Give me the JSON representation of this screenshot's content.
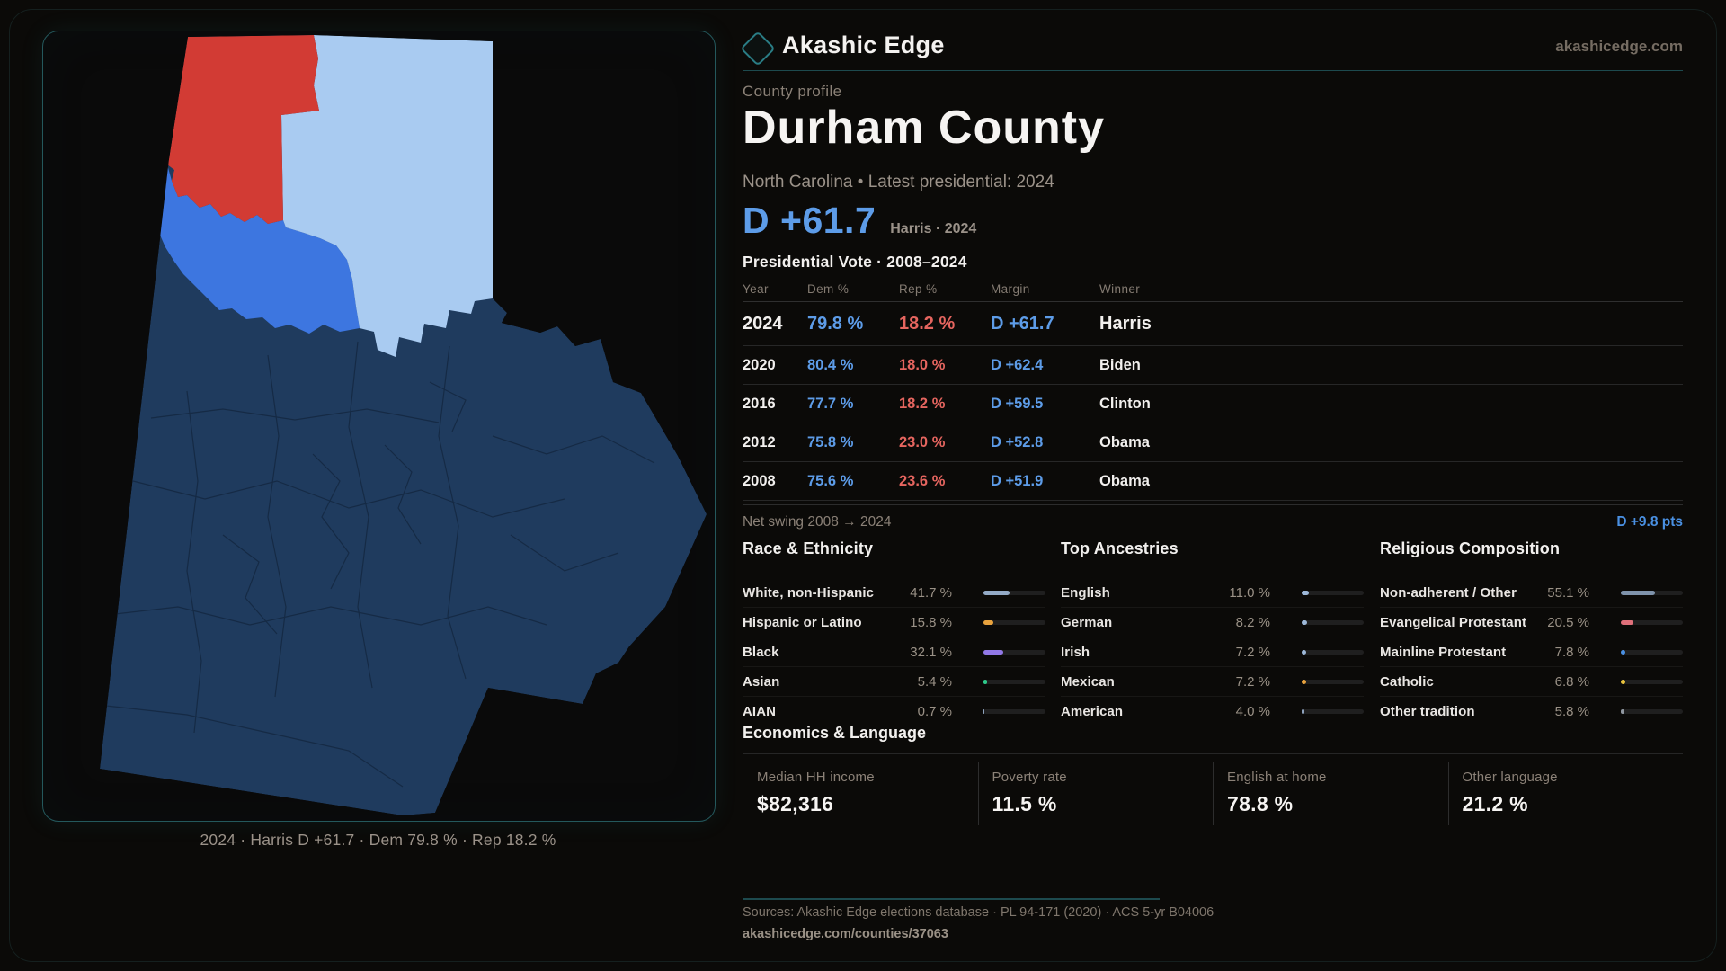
{
  "brand": {
    "name": "Akashic Edge",
    "domain": "akashicedge.com"
  },
  "page": {
    "kicker": "County profile",
    "title": "Durham County",
    "subtitle": "North Carolina • Latest presidential: 2024"
  },
  "headline": {
    "margin": "D +61.7",
    "context": "Harris · 2024"
  },
  "map": {
    "caption": "2024 · Harris D +61.7 · Dem 79.8 % · Rep 18.2 %",
    "colors": {
      "strong_dem": "#1f3b5e",
      "lean_dem_medium": "#3d76e0",
      "lean_dem_light": "#a9cbf1",
      "rep": "#d23b34",
      "precinct_line": "#142841",
      "panel_border": "#24585c"
    }
  },
  "vote_table": {
    "title": "Presidential Vote · 2008–2024",
    "columns": [
      "Year",
      "Dem %",
      "Rep %",
      "Margin",
      "Winner"
    ],
    "rows": [
      {
        "year": "2024",
        "dem": "79.8 %",
        "rep": "18.2 %",
        "margin": "D +61.7",
        "winner": "Harris",
        "highlight": true
      },
      {
        "year": "2020",
        "dem": "80.4 %",
        "rep": "18.0 %",
        "margin": "D +62.4",
        "winner": "Biden",
        "highlight": false
      },
      {
        "year": "2016",
        "dem": "77.7 %",
        "rep": "18.2 %",
        "margin": "D +59.5",
        "winner": "Clinton",
        "highlight": false
      },
      {
        "year": "2012",
        "dem": "75.8 %",
        "rep": "23.0 %",
        "margin": "D +52.8",
        "winner": "Obama",
        "highlight": false
      },
      {
        "year": "2008",
        "dem": "75.6 %",
        "rep": "23.6 %",
        "margin": "D +51.9",
        "winner": "Obama",
        "highlight": false
      }
    ]
  },
  "net_swing": {
    "label": "Net swing 2008 → 2024",
    "value": "D +9.8 pts"
  },
  "demographics": [
    {
      "title": "Race & Ethnicity",
      "rows": [
        {
          "label": "White, non-Hispanic",
          "value": "41.7 %",
          "pct": 41.7,
          "color": "#93aac6"
        },
        {
          "label": "Hispanic or Latino",
          "value": "15.8 %",
          "pct": 15.8,
          "color": "#e8a23d"
        },
        {
          "label": "Black",
          "value": "32.1 %",
          "pct": 32.1,
          "color": "#9178e6"
        },
        {
          "label": "Asian",
          "value": "5.4 %",
          "pct": 5.4,
          "color": "#2ec98a"
        },
        {
          "label": "AIAN",
          "value": "0.7 %",
          "pct": 0.7,
          "color": "#8fa3bd"
        }
      ]
    },
    {
      "title": "Top Ancestries",
      "rows": [
        {
          "label": "English",
          "value": "11.0 %",
          "pct": 11.0,
          "color": "#9db8d8"
        },
        {
          "label": "German",
          "value": "8.2 %",
          "pct": 8.2,
          "color": "#9db8d8"
        },
        {
          "label": "Irish",
          "value": "7.2 %",
          "pct": 7.2,
          "color": "#9db8d8"
        },
        {
          "label": "Mexican",
          "value": "7.2 %",
          "pct": 7.2,
          "color": "#e8a23d"
        },
        {
          "label": "American",
          "value": "4.0 %",
          "pct": 4.0,
          "color": "#8fa3bd"
        }
      ]
    },
    {
      "title": "Religious Composition",
      "rows": [
        {
          "label": "Non-adherent / Other",
          "value": "55.1 %",
          "pct": 55.1,
          "color": "#7f93ab"
        },
        {
          "label": "Evangelical Protestant",
          "value": "20.5 %",
          "pct": 20.5,
          "color": "#e0707a"
        },
        {
          "label": "Mainline Protestant",
          "value": "7.8 %",
          "pct": 7.8,
          "color": "#4a90e2"
        },
        {
          "label": "Catholic",
          "value": "6.8 %",
          "pct": 6.8,
          "color": "#e8c23d"
        },
        {
          "label": "Other tradition",
          "value": "5.8 %",
          "pct": 5.8,
          "color": "#9097a0"
        }
      ]
    }
  ],
  "economics": {
    "title": "Economics & Language",
    "stats": [
      {
        "label": "Median HH income",
        "value": "$82,316"
      },
      {
        "label": "Poverty rate",
        "value": "11.5 %"
      },
      {
        "label": "English at home",
        "value": "78.8 %"
      },
      {
        "label": "Other language",
        "value": "21.2 %"
      }
    ]
  },
  "footer": {
    "sources": "Sources: Akashic Edge elections database · PL 94-171 (2020) · ACS 5-yr B04006",
    "permalink": "akashicedge.com/counties/37063"
  }
}
